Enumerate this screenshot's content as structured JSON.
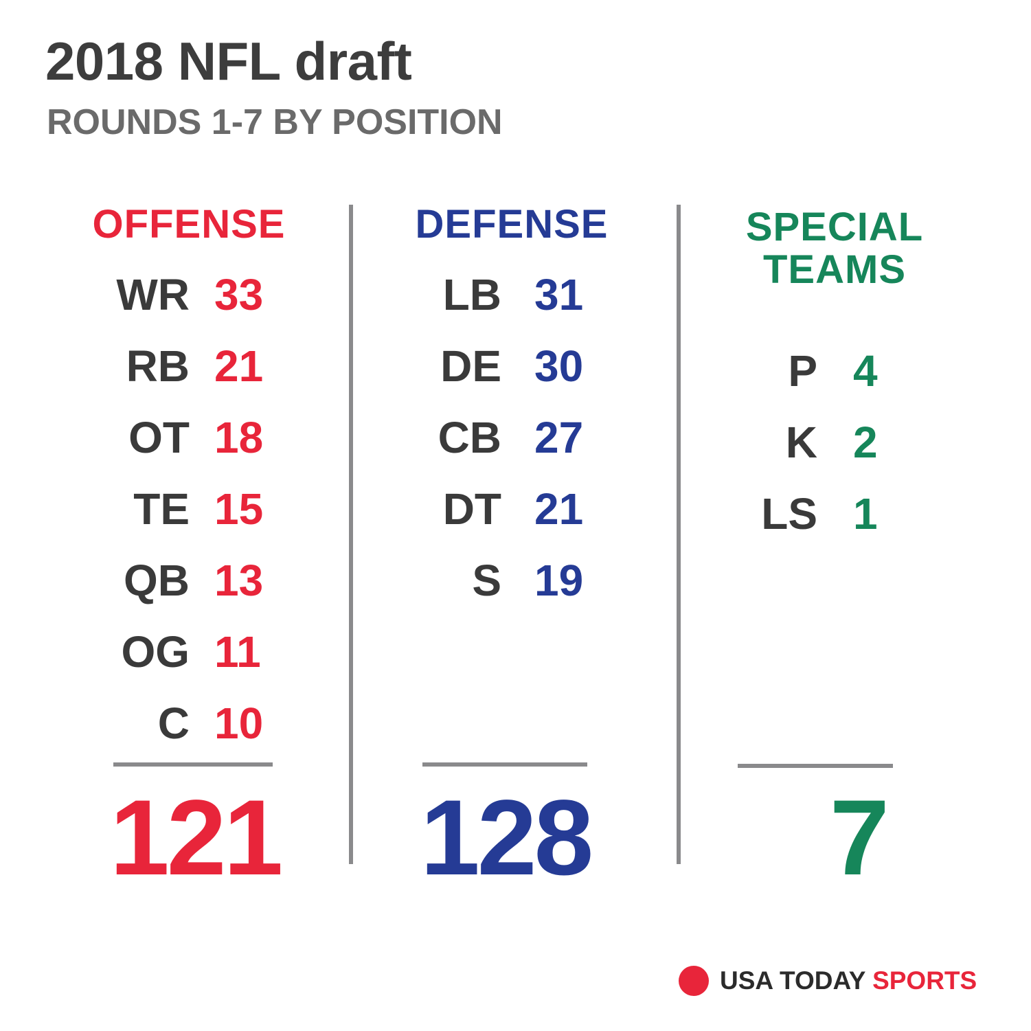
{
  "title": "2018 NFL draft",
  "subtitle": "ROUNDS 1-7 BY POSITION",
  "colors": {
    "offense": "#e8253a",
    "defense": "#253b95",
    "special": "#16865a",
    "position_text": "#3a3a3a",
    "brand_red": "#e8253a"
  },
  "chart_data": {
    "type": "table",
    "title": "2018 NFL draft",
    "subtitle": "ROUNDS 1-7 BY POSITION",
    "groups": [
      {
        "name": "OFFENSE",
        "rows": [
          {
            "position": "WR",
            "count": "33"
          },
          {
            "position": "RB",
            "count": "21"
          },
          {
            "position": "OT",
            "count": "18"
          },
          {
            "position": "TE",
            "count": "15"
          },
          {
            "position": "QB",
            "count": "13"
          },
          {
            "position": "OG",
            "count": "11"
          },
          {
            "position": "C",
            "count": "10"
          }
        ],
        "total": "121"
      },
      {
        "name": "DEFENSE",
        "rows": [
          {
            "position": "LB",
            "count": "31"
          },
          {
            "position": "DE",
            "count": "30"
          },
          {
            "position": "CB",
            "count": "27"
          },
          {
            "position": "DT",
            "count": "21"
          },
          {
            "position": "S",
            "count": "19"
          }
        ],
        "total": "128"
      },
      {
        "name_line1": "SPECIAL",
        "name_line2": "TEAMS",
        "rows": [
          {
            "position": "P",
            "count": "4"
          },
          {
            "position": "K",
            "count": "2"
          },
          {
            "position": "LS",
            "count": "1"
          }
        ],
        "total": "7"
      }
    ]
  },
  "brand": {
    "usa_today": "USA TODAY",
    "sports": "SPORTS"
  }
}
